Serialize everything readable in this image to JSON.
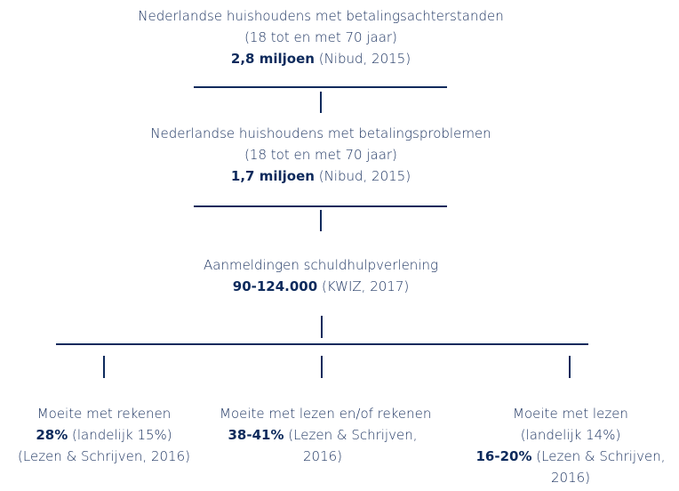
{
  "nodes": [
    {
      "label": "Nederlandse huishoudens met betalingsachterstanden",
      "range": "(18 tot en met 70 jaar)",
      "value": "2,8 miljoen",
      "source": "(Nibud, 2015)"
    },
    {
      "label": "Nederlandse huishoudens met betalingsproblemen",
      "range": "(18 tot en met 70 jaar)",
      "value": "1,7 miljoen",
      "source": "(Nibud, 2015)"
    },
    {
      "label": "Aanmeldingen schuldhulpverlening",
      "value": "90-124.000",
      "source": "(KWIZ, 2017)"
    }
  ],
  "branches": [
    {
      "label": "Moeite met rekenen",
      "value": "28%",
      "note": "(landelijk 15%)",
      "source": "(Lezen & Schrijven, 2016)"
    },
    {
      "label": "Moeite met lezen en/of rekenen",
      "value": "38-41%",
      "source": "(Lezen & Schrijven, 2016)"
    },
    {
      "label": "Moeite met lezen",
      "note": "(landelijk 14%)",
      "value": "16-20%",
      "source": "(Lezen & Schrijven, 2016)"
    }
  ]
}
